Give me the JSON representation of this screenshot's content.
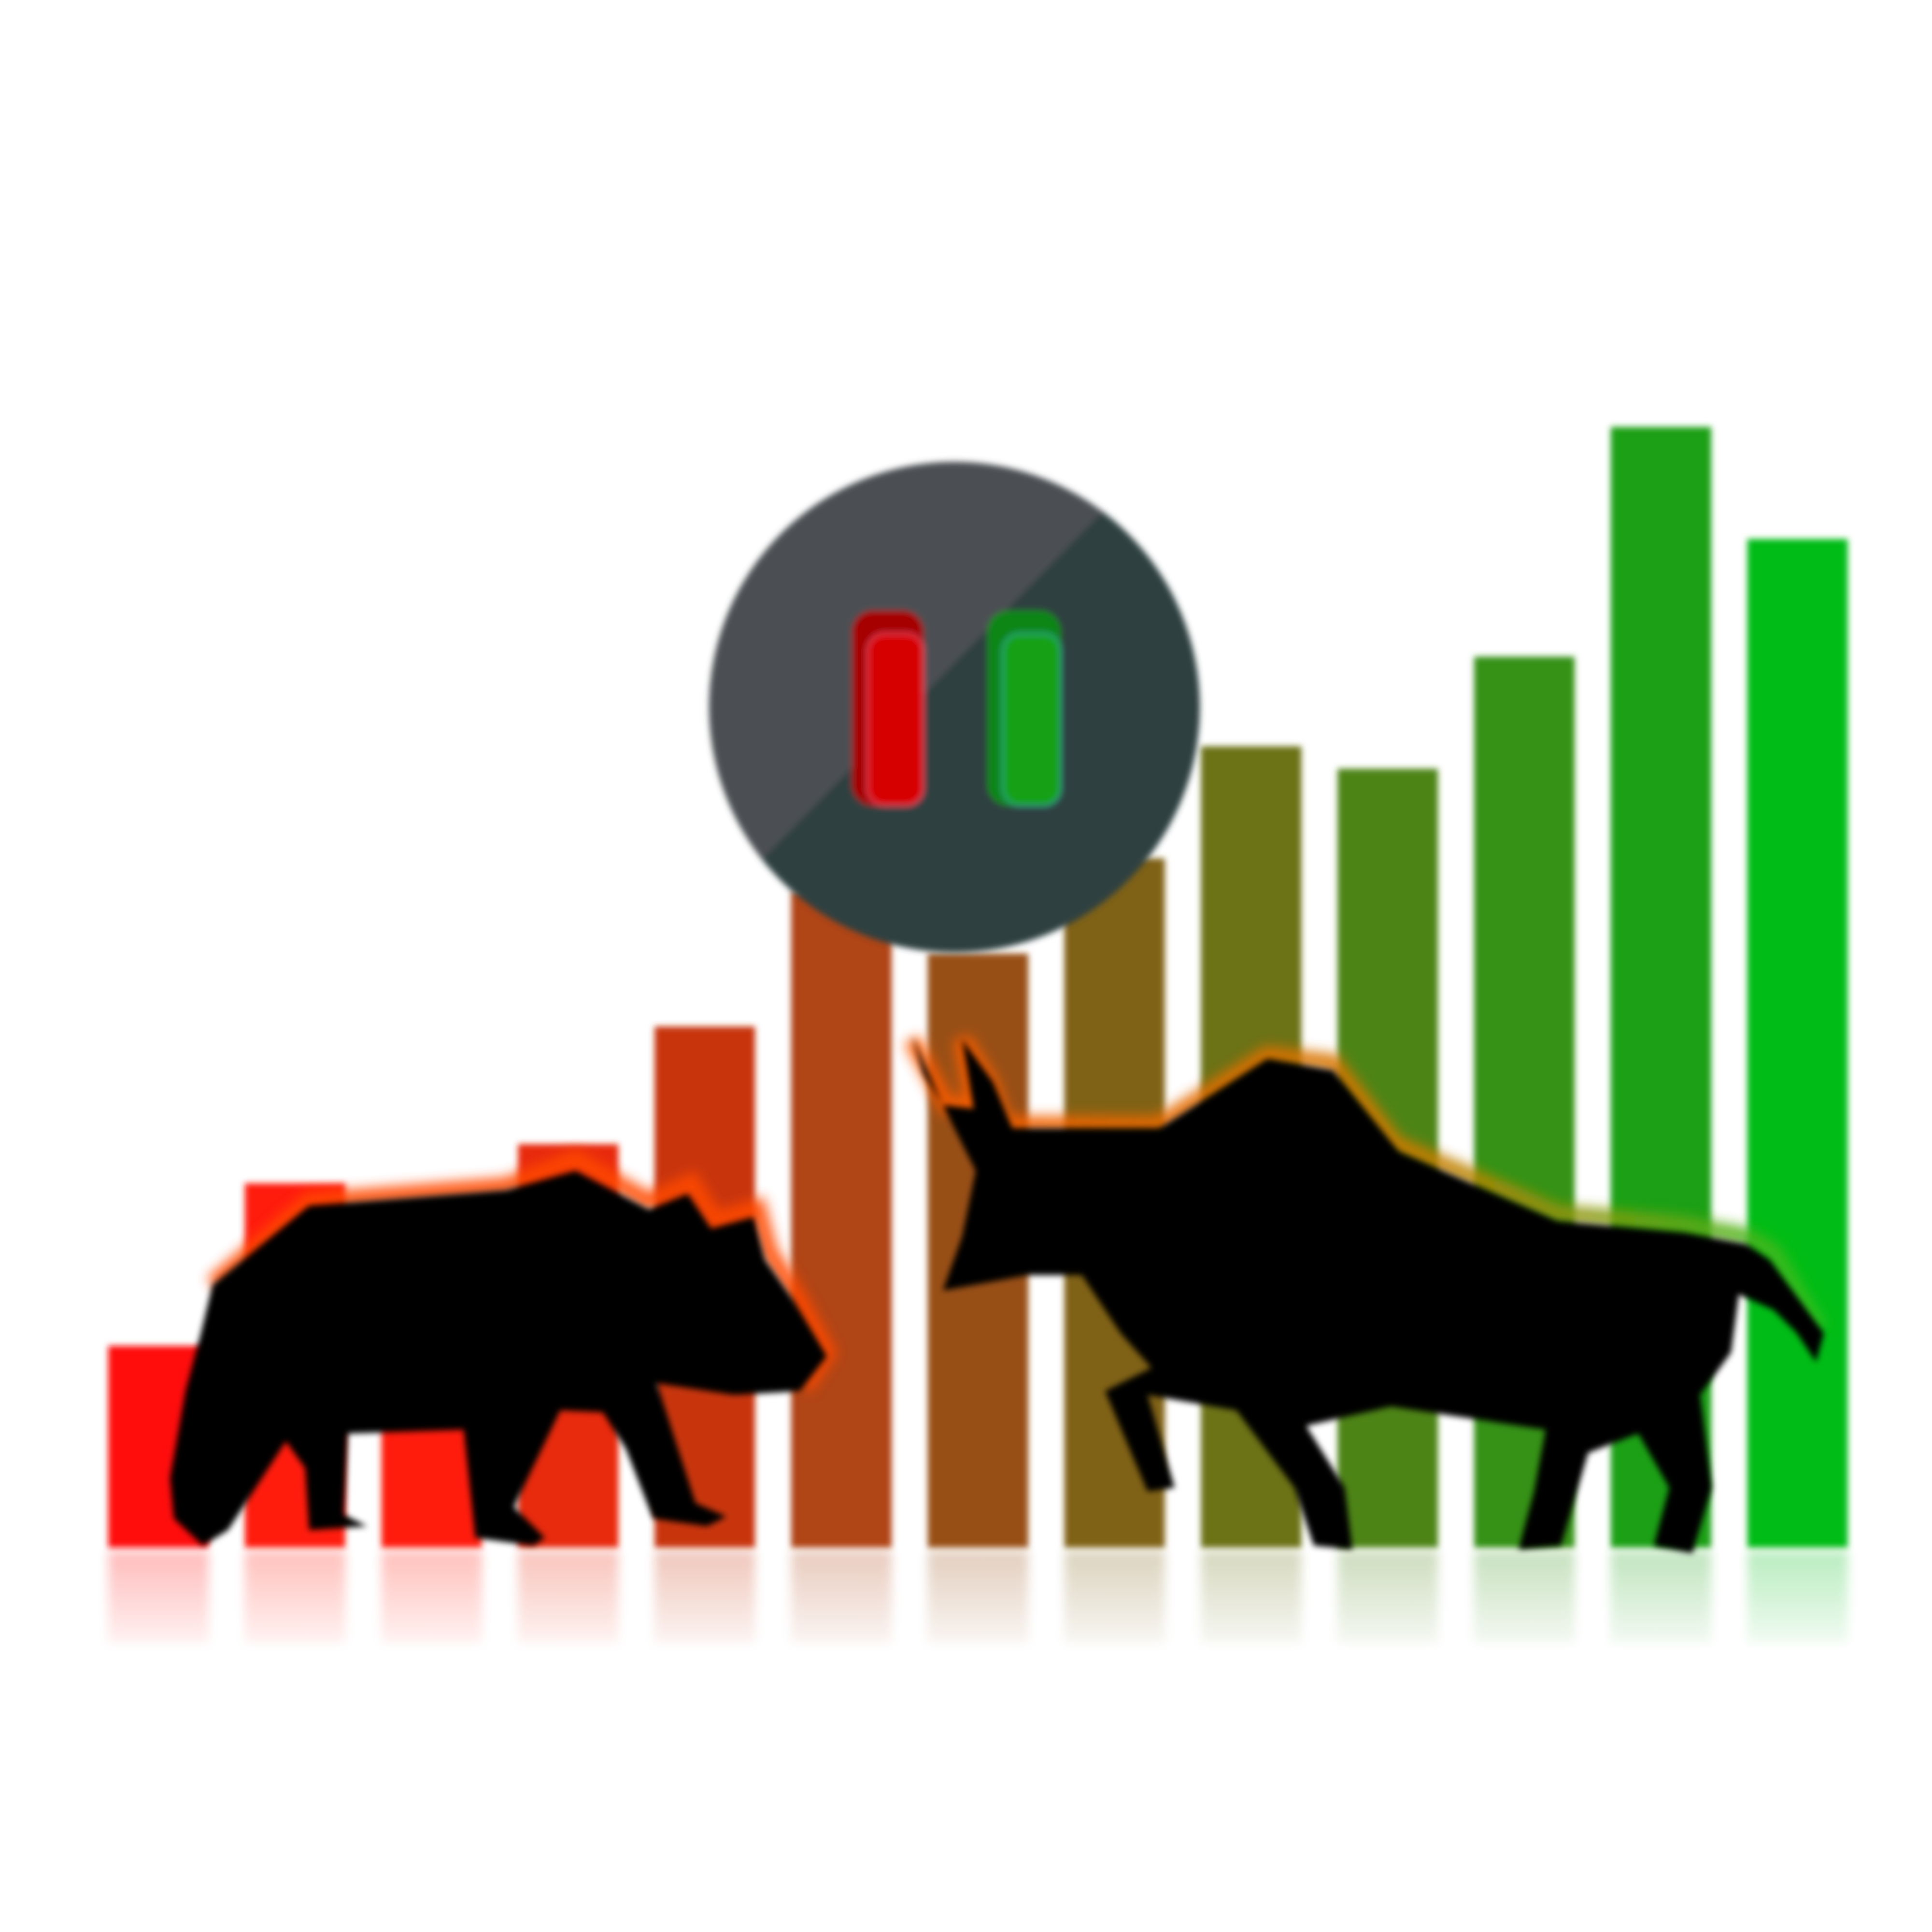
{
  "illustration": {
    "subject": "bear-vs-bull-market",
    "background_color": "#ffffff",
    "bars": [
      {
        "level": 0.18,
        "color": "#ff0a0a"
      },
      {
        "level": 0.325,
        "color": "#ff1a0a"
      },
      {
        "level": 0.245,
        "color": "#ff1a10"
      },
      {
        "level": 0.36,
        "color": "#e82a0e"
      },
      {
        "level": 0.465,
        "color": "#c8360c"
      },
      {
        "level": 0.585,
        "color": "#b04412"
      },
      {
        "level": 0.53,
        "color": "#985012"
      },
      {
        "level": 0.615,
        "color": "#806214"
      },
      {
        "level": 0.715,
        "color": "#6c7214"
      },
      {
        "level": 0.695,
        "color": "#4e8416"
      },
      {
        "level": 0.795,
        "color": "#349216"
      },
      {
        "level": 1.0,
        "color": "#1aa016"
      },
      {
        "level": 0.9,
        "color": "#04bc18"
      }
    ],
    "badge": {
      "colors": {
        "light": "#4b5052",
        "dark": "#2f3f40"
      },
      "icons": [
        "red-candle-icon",
        "green-candle-icon"
      ],
      "candle_colors": {
        "red": "#d60406",
        "red_dark": "#a60406",
        "green": "#14a018",
        "green_dark": "#0e8614"
      }
    },
    "silhouettes": [
      {
        "name": "bear-icon",
        "fill": "#050505",
        "glow": "#ff4a00"
      },
      {
        "name": "bull-icon",
        "fill": "#050505",
        "glow_left": "#ff5a00",
        "glow_right": "#30c020"
      }
    ]
  }
}
